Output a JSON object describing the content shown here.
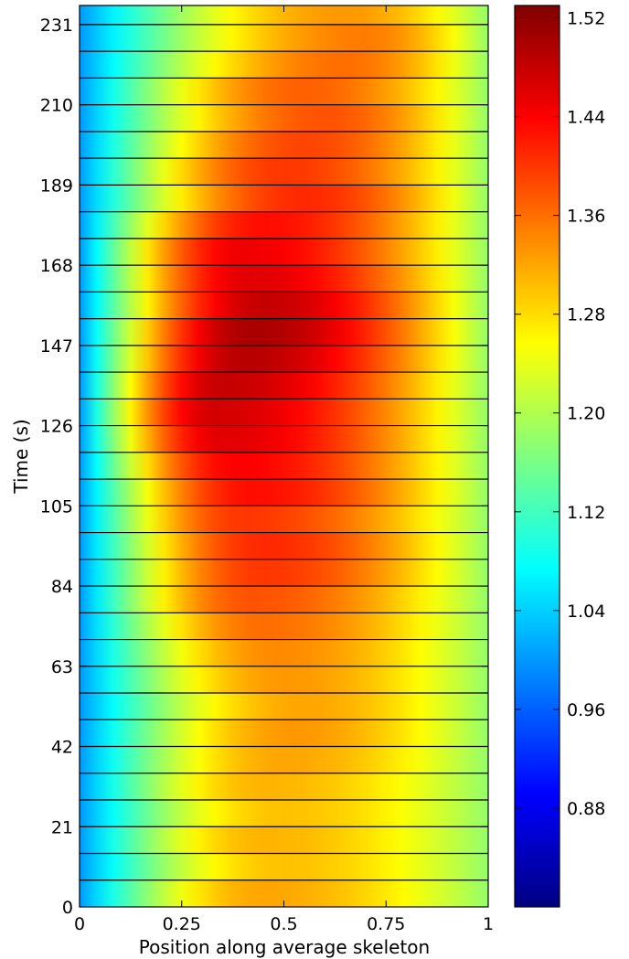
{
  "chart_data": {
    "type": "heatmap",
    "xlabel": "Position along average skeleton",
    "ylabel": "Time (s)",
    "xlim": [
      0,
      1
    ],
    "ylim": [
      0,
      236
    ],
    "x_ticks": [
      0,
      0.25,
      0.5,
      0.75,
      1
    ],
    "x_tick_labels": [
      "0",
      "0.25",
      "0.5",
      "0.75",
      "1"
    ],
    "y_ticks": [
      0,
      21,
      42,
      63,
      84,
      105,
      126,
      147,
      168,
      189,
      210,
      231
    ],
    "y_tick_labels": [
      "0",
      "21",
      "42",
      "63",
      "84",
      "105",
      "126",
      "147",
      "168",
      "189",
      "210",
      "231"
    ],
    "colormap": "jet",
    "colorbar": {
      "vmin": 0.8,
      "vmax": 1.53,
      "ticks": [
        0.88,
        0.96,
        1.04,
        1.12,
        1.2,
        1.28,
        1.36,
        1.44,
        1.52
      ],
      "tick_labels": [
        "0.88",
        "0.96",
        "1.04",
        "1.12",
        "1.20",
        "1.28",
        "1.36",
        "1.44",
        "1.52"
      ]
    },
    "band_separators_time": [
      7,
      14,
      21,
      28,
      35,
      42,
      49,
      56,
      63,
      70,
      77,
      84,
      91,
      98,
      105,
      112,
      119,
      126,
      133,
      140,
      147,
      154,
      161,
      168,
      175,
      182,
      189,
      196,
      203,
      210,
      217,
      224,
      231
    ],
    "peak_value_by_band": [
      1.32,
      1.3,
      1.31,
      1.3,
      1.31,
      1.32,
      1.33,
      1.32,
      1.33,
      1.34,
      1.36,
      1.38,
      1.4,
      1.41,
      1.4,
      1.43,
      1.44,
      1.46,
      1.47,
      1.48,
      1.49,
      1.5,
      1.48,
      1.46,
      1.45,
      1.43,
      1.41,
      1.4,
      1.39,
      1.38,
      1.37,
      1.36,
      1.35,
      1.33
    ],
    "peak_position_by_band": [
      0.45,
      0.5,
      0.45,
      0.5,
      0.45,
      0.5,
      0.52,
      0.55,
      0.5,
      0.48,
      0.45,
      0.42,
      0.45,
      0.45,
      0.4,
      0.42,
      0.38,
      0.35,
      0.33,
      0.35,
      0.4,
      0.42,
      0.45,
      0.42,
      0.4,
      0.45,
      0.55,
      0.5,
      0.55,
      0.6,
      0.55,
      0.65,
      0.7,
      0.65
    ],
    "left_edge_value": 1.0,
    "right_edge_value": 1.18
  }
}
